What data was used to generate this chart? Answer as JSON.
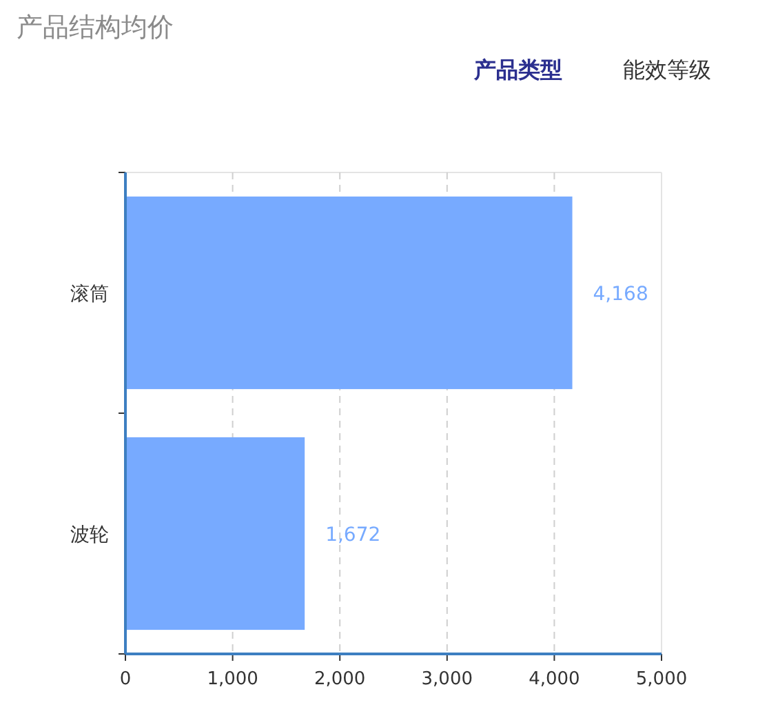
{
  "chart_data": {
    "type": "bar",
    "orientation": "horizontal",
    "title": "产品结构均价",
    "annotations": [
      "产品类型",
      "能效等级"
    ],
    "categories": [
      "滚筒",
      "波轮"
    ],
    "values": [
      4168,
      1672
    ],
    "value_labels": [
      "4,168",
      "1,672"
    ],
    "color": "#77aaff",
    "xlim": [
      0,
      5000
    ],
    "xticks": [
      0,
      {
        "value": 1000,
        "label": "1,000"
      },
      {
        "value": 2000,
        "label": "2,000"
      },
      {
        "value": 3000,
        "label": "3,000"
      },
      {
        "value": 4000,
        "label": "4,000"
      },
      {
        "value": 5000,
        "label": "5,000"
      }
    ],
    "grid": "x"
  }
}
